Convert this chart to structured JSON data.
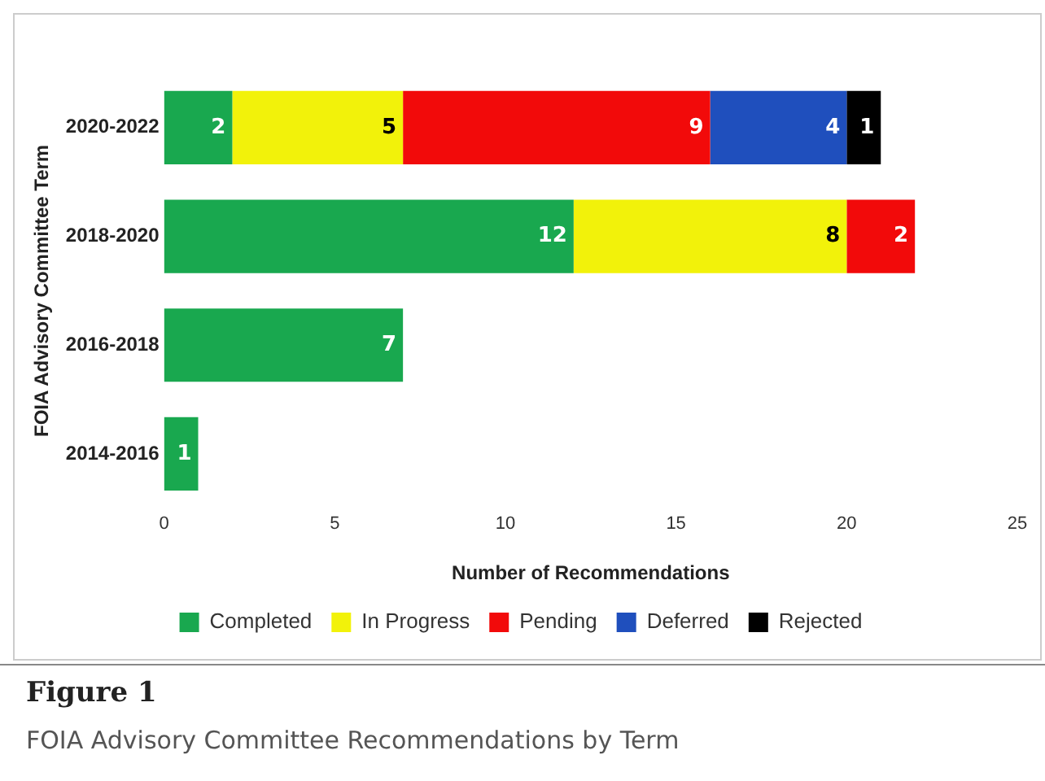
{
  "chart_data": {
    "type": "bar",
    "orientation": "horizontal",
    "stacked": true,
    "data_labels": true,
    "legend": "bottom",
    "grid": false,
    "ylabel": "FOIA Advisory Committee Term",
    "xlabel": "Number of Recommendations",
    "categories": [
      "2020-2022",
      "2018-2020",
      "2016-2018",
      "2014-2016"
    ],
    "xlim": [
      0,
      25
    ],
    "xticks": [
      0,
      5,
      10,
      15,
      20,
      25
    ],
    "series": [
      {
        "name": "Completed",
        "color": "#19a84f",
        "values": [
          2,
          12,
          7,
          1
        ]
      },
      {
        "name": "In Progress",
        "color": "#f2f20a",
        "values": [
          5,
          8,
          null,
          null
        ]
      },
      {
        "name": "Pending",
        "color": "#f20a0a",
        "values": [
          9,
          2,
          null,
          null
        ]
      },
      {
        "name": "Deferred",
        "color": "#1f4fbd",
        "values": [
          4,
          null,
          null,
          null
        ]
      },
      {
        "name": "Rejected",
        "color": "#000000",
        "values": [
          1,
          null,
          null,
          null
        ]
      }
    ],
    "title": "Figure 1",
    "subtitle": "FOIA Advisory Committee Recommendations by Term"
  }
}
